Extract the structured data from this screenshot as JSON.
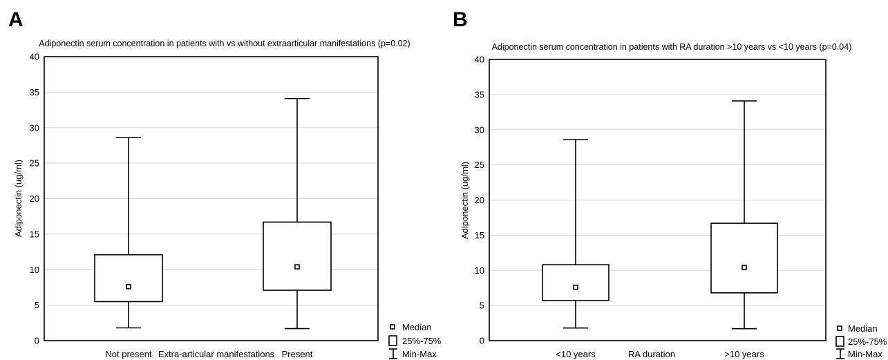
{
  "charts": [
    {
      "panel": "A",
      "title": "Adiponectin serum concentration in patients with vs without extraarticular manifestations (p=0.02)",
      "ylabel": "Adiponectin (ug/ml)",
      "xlabel": "Extra-articular manifestations"
    },
    {
      "panel": "B",
      "title": "Adiponectin serum concentration in patients with RA duration >10 years vs <10 years (p=0.04)",
      "ylabel": "Adiponectin (ug/ml)",
      "xlabel": "RA duration"
    }
  ],
  "legend": {
    "median": "Median",
    "iqr": "25%-75%",
    "range": "Min-Max"
  },
  "chart_data": [
    {
      "type": "box",
      "title": "Adiponectin serum concentration in patients with vs without extraarticular manifestations (p=0.02)",
      "xlabel": "Extra-articular manifestations",
      "ylabel": "Adiponectin (ug/ml)",
      "ylim": [
        0,
        40
      ],
      "yticks": [
        0,
        5,
        10,
        15,
        20,
        25,
        30,
        35,
        40
      ],
      "grid": true,
      "legend_position": "bottom-right outside",
      "categories": [
        "Not present",
        "Present"
      ],
      "boxes": [
        {
          "category": "Not present",
          "min": 1.8,
          "q1": 5.5,
          "median": 7.6,
          "q3": 12.1,
          "max": 28.6
        },
        {
          "category": "Present",
          "min": 1.7,
          "q1": 7.1,
          "median": 10.4,
          "q3": 16.7,
          "max": 34.1
        }
      ]
    },
    {
      "type": "box",
      "title": "Adiponectin serum concentration in patients with RA duration >10 years vs <10 years (p=0.04)",
      "xlabel": "RA duration",
      "ylabel": "Adiponectin (ug/ml)",
      "ylim": [
        0,
        40
      ],
      "yticks": [
        0,
        5,
        10,
        15,
        20,
        25,
        30,
        35,
        40
      ],
      "grid": true,
      "legend_position": "bottom-right outside",
      "categories": [
        "<10 years",
        ">10 years"
      ],
      "boxes": [
        {
          "category": "<10 years",
          "min": 1.8,
          "q1": 5.7,
          "median": 7.6,
          "q3": 10.8,
          "max": 28.6
        },
        {
          "category": ">10 years",
          "min": 1.7,
          "q1": 6.8,
          "median": 10.4,
          "q3": 16.7,
          "max": 34.1
        }
      ]
    }
  ]
}
